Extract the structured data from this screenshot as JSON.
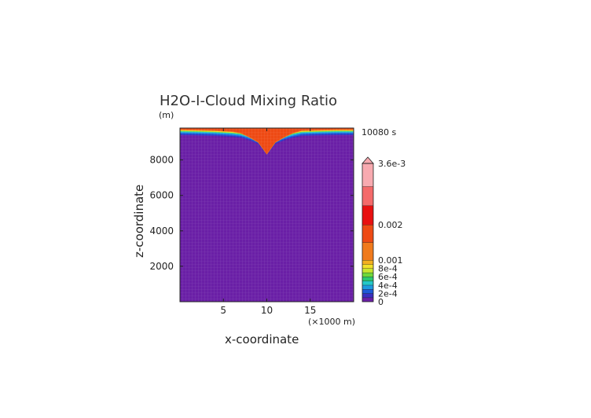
{
  "chart_data": {
    "type": "heatmap",
    "title": "H2O-I-Cloud Mixing Ratio",
    "y_unit": "(m)",
    "xlabel": "x-coordinate",
    "ylabel": "z-coordinate",
    "x_unit": "(×1000 m)",
    "time_label": "10080 s",
    "xlim": [
      0,
      20
    ],
    "ylim": [
      0,
      9800
    ],
    "x_ticks": [
      5,
      10,
      15
    ],
    "y_ticks": [
      2000,
      4000,
      6000,
      8000
    ],
    "cloud_base_profile": {
      "x": [
        0,
        2,
        4,
        6,
        7,
        8,
        9,
        9.5,
        10,
        10.5,
        11,
        12,
        13,
        14,
        16,
        18,
        20
      ],
      "z": [
        9400,
        9380,
        9350,
        9300,
        9250,
        9100,
        8900,
        8600,
        8300,
        8600,
        8900,
        9100,
        9250,
        9350,
        9380,
        9400,
        9400
      ]
    },
    "cloud_top": 9800,
    "colorbar": {
      "levels": [
        0,
        0.0001,
        0.0002,
        0.0003,
        0.0004,
        0.0005,
        0.0006,
        0.0007,
        0.0008,
        0.0009,
        0.001,
        0.0015,
        0.002,
        0.0025,
        0.003,
        0.0036
      ],
      "colors": [
        "#6a1fa6",
        "#3a2fc0",
        "#1e5ad8",
        "#1f9ae0",
        "#25c8c8",
        "#2ac870",
        "#6fd83a",
        "#c8e630",
        "#f2e12a",
        "#f4b020",
        "#f07a1c",
        "#ee4a14",
        "#e81010",
        "#f46a6a",
        "#f8aab0"
      ],
      "tick_labels": [
        {
          "value": 0,
          "label": "0"
        },
        {
          "value": 0.0002,
          "label": "2e-4"
        },
        {
          "value": 0.0004,
          "label": "4e-4"
        },
        {
          "value": 0.0006,
          "label": "6e-4"
        },
        {
          "value": 0.0008,
          "label": "8e-4"
        },
        {
          "value": 0.001,
          "label": "0.001"
        },
        {
          "value": 0.002,
          "label": "0.002"
        },
        {
          "value": 0.0036,
          "label": "3.6e-3"
        }
      ],
      "extend": "max"
    }
  }
}
